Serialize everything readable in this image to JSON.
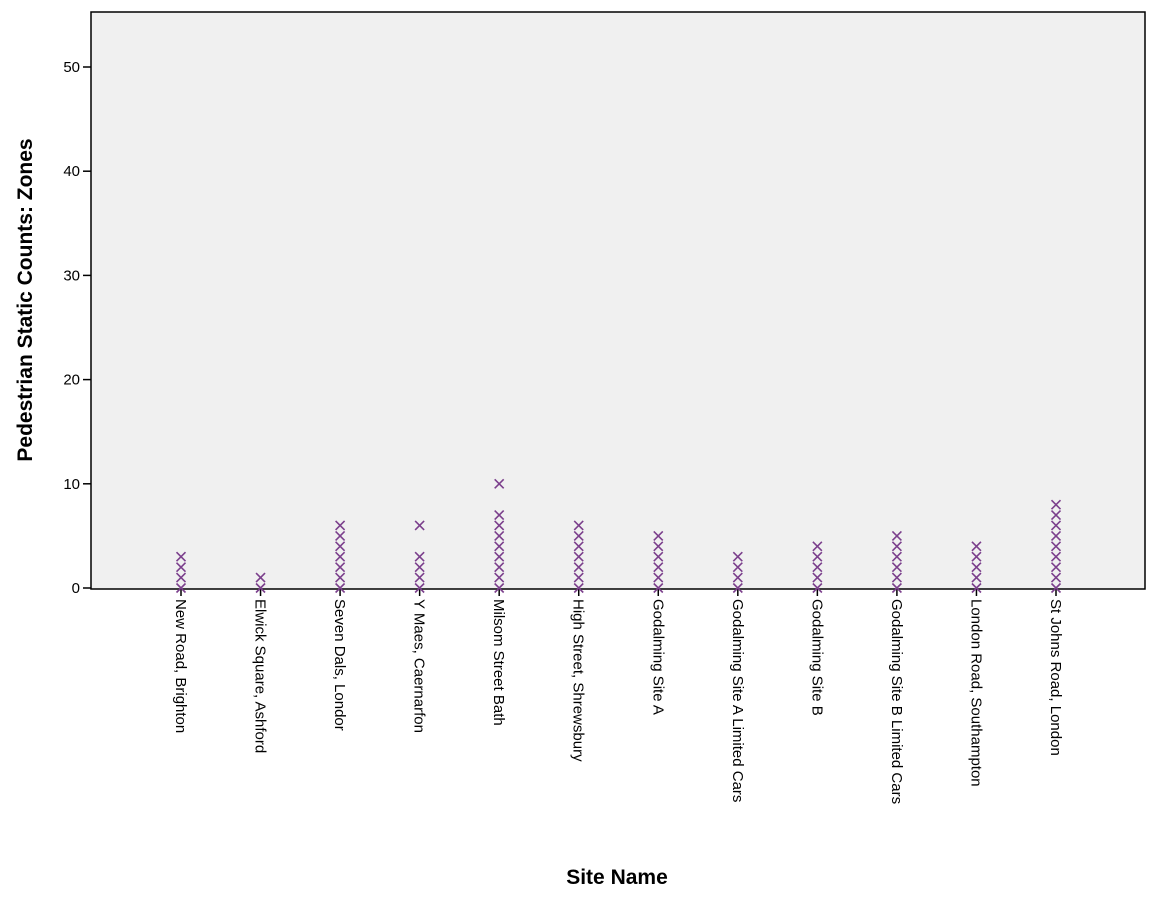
{
  "chart_data": {
    "type": "scatter",
    "title": "",
    "xlabel": "Site Name",
    "ylabel": "Pedestrian Static Counts: Zones",
    "ylim": [
      0,
      55
    ],
    "yticks": [
      0,
      10,
      20,
      30,
      40,
      50
    ],
    "grid": false,
    "marker": "x",
    "colors": {
      "plot_background": "#f0f0f0",
      "marker": "#7b3f8c",
      "axis": "#000000"
    },
    "categories": [
      "New Road, Brighton",
      "Elwick Square, Ashford",
      "Seven Dals, Londor",
      "Y Maes, Caernarfon",
      "Milsom Street Bath",
      "High Street, Shrewsbury",
      "Godalming Site A",
      "Godalming Site A Limited Cars",
      "Godalming Site B",
      "Godalming Site B Limited Cars",
      "London Road, Southampton",
      "St Johns Road, London"
    ],
    "series": [
      {
        "values": [
          [
            0,
            1,
            2,
            3
          ],
          [
            0,
            1
          ],
          [
            0,
            1,
            2,
            3,
            4,
            5,
            6
          ],
          [
            0,
            1,
            2,
            3,
            6
          ],
          [
            0,
            1,
            2,
            3,
            4,
            5,
            6,
            7,
            10
          ],
          [
            0,
            1,
            2,
            3,
            4,
            5,
            6
          ],
          [
            0,
            1,
            2,
            3,
            4,
            5
          ],
          [
            0,
            1,
            2,
            3
          ],
          [
            0,
            1,
            2,
            3,
            4
          ],
          [
            0,
            1,
            2,
            3,
            4,
            5
          ],
          [
            0,
            1,
            2,
            3,
            4
          ],
          [
            0,
            1,
            2,
            3,
            4,
            5,
            6,
            7,
            8
          ]
        ]
      }
    ]
  }
}
